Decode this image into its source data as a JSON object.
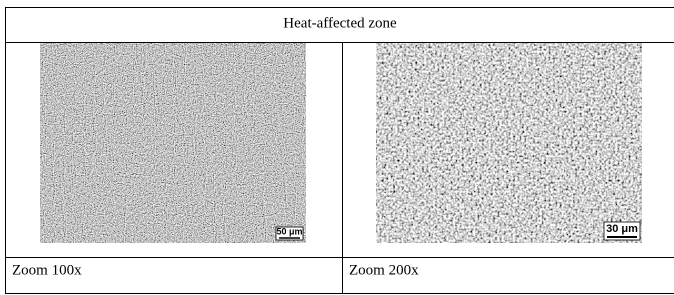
{
  "table": {
    "header": "Heat-affected zone",
    "images": [
      {
        "scale_label": "50 μm",
        "caption": "Zoom 100x"
      },
      {
        "scale_label": "30 μm",
        "caption": "Zoom 200x"
      }
    ]
  }
}
